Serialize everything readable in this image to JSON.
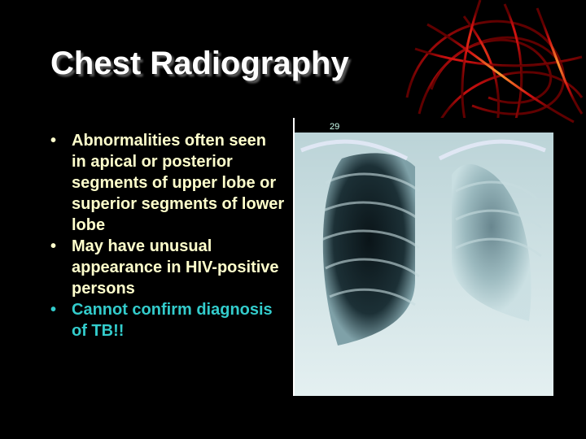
{
  "slide": {
    "title": "Chest Radiography",
    "bullets": [
      {
        "text": "Abnormalities often seen in apical or posterior segments of upper lobe or superior segments of lower lobe",
        "color": "#ffffcc"
      },
      {
        "text": "May have unusual appearance in HIV-positive persons",
        "color": "#ffffcc"
      },
      {
        "text": "Cannot confirm diagnosis of TB!!",
        "color": "#33cccc"
      }
    ],
    "image": {
      "label": "29"
    }
  }
}
